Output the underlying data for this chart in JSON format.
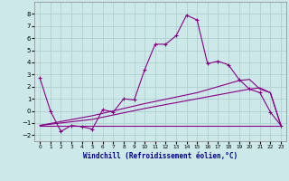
{
  "xlabel": "Windchill (Refroidissement éolien,°C)",
  "bg_color": "#cce8e8",
  "grid_color": "#aacccc",
  "line_color": "#880088",
  "xlim": [
    -0.5,
    23.5
  ],
  "ylim": [
    -2.5,
    9.0
  ],
  "xticks": [
    0,
    1,
    2,
    3,
    4,
    5,
    6,
    7,
    8,
    9,
    10,
    11,
    12,
    13,
    14,
    15,
    16,
    17,
    18,
    19,
    20,
    21,
    22,
    23
  ],
  "yticks": [
    -2,
    -1,
    0,
    1,
    2,
    3,
    4,
    5,
    6,
    7,
    8
  ],
  "series1_x": [
    0,
    1,
    2,
    3,
    4,
    5,
    6,
    7,
    8,
    9,
    10,
    11,
    12,
    13,
    14,
    15,
    16,
    17,
    18,
    19,
    20,
    21,
    22,
    23
  ],
  "series1_y": [
    2.7,
    0.0,
    -1.7,
    -1.2,
    -1.3,
    -1.5,
    0.1,
    -0.1,
    1.0,
    0.9,
    3.4,
    5.5,
    5.5,
    6.2,
    7.9,
    7.5,
    3.9,
    4.1,
    3.8,
    2.6,
    1.8,
    1.5,
    -0.1,
    -1.2
  ],
  "series2_x": [
    0,
    5,
    22,
    23
  ],
  "series2_y": [
    -1.2,
    -1.2,
    -1.2,
    -1.2
  ],
  "series3_x": [
    0,
    5,
    10,
    15,
    20,
    21,
    22,
    23
  ],
  "series3_y": [
    -1.2,
    -0.7,
    0.2,
    1.0,
    1.8,
    1.9,
    1.5,
    -1.2
  ],
  "series4_x": [
    0,
    5,
    10,
    15,
    19,
    20,
    21,
    22,
    23
  ],
  "series4_y": [
    -1.2,
    -0.4,
    0.6,
    1.5,
    2.5,
    2.6,
    1.8,
    1.5,
    -1.2
  ]
}
